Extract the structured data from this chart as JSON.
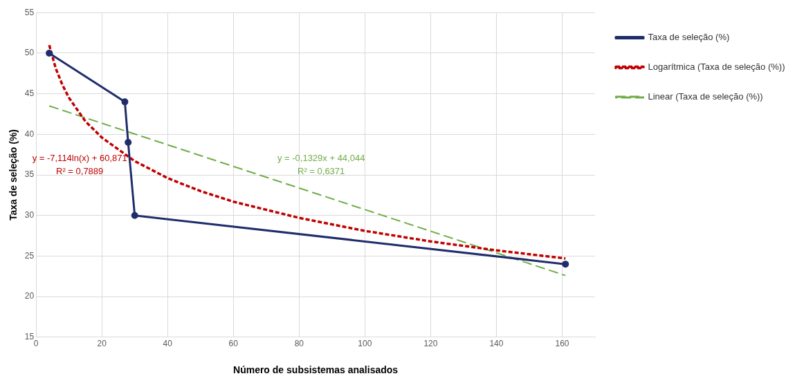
{
  "chart_data": {
    "type": "line",
    "xlabel": "Número de subsistemas analisados",
    "ylabel": "Taxa de seleção (%)",
    "xlim": [
      0,
      170
    ],
    "xticks": [
      0,
      20,
      40,
      60,
      80,
      100,
      120,
      140,
      160
    ],
    "ylim": [
      15,
      55
    ],
    "yticks": [
      15,
      20,
      25,
      30,
      35,
      40,
      45,
      50,
      55
    ],
    "grid": true,
    "legend": "right",
    "series": [
      {
        "name": "Taxa de seleção (%)",
        "color": "#1f2d6b",
        "type": "line",
        "marker": "circle",
        "line_style": "solid",
        "x": [
          4,
          27,
          28,
          30,
          161
        ],
        "values": [
          50,
          44,
          39,
          30,
          24
        ]
      },
      {
        "name": "Logarítmica (Taxa de seleção (%))",
        "color": "#c00000",
        "type": "line",
        "marker": "none",
        "line_style": "dotted",
        "x": [
          4,
          6,
          8,
          10,
          15,
          20,
          30,
          40,
          50,
          60,
          80,
          100,
          120,
          140,
          161
        ],
        "values": [
          51.0,
          48.1,
          46.1,
          44.5,
          41.6,
          39.6,
          36.7,
          34.6,
          33.0,
          31.7,
          29.7,
          28.1,
          26.8,
          25.7,
          24.7
        ]
      },
      {
        "name": "Linear (Taxa de seleção (%))",
        "color": "#70ad47",
        "type": "line",
        "marker": "none",
        "line_style": "dashed",
        "x": [
          4,
          161
        ],
        "values": [
          43.5,
          22.6
        ]
      }
    ],
    "annotations": [
      "y = -7,114ln(x) + 60,871",
      "R² = 0,7889",
      "y = -0,1329x + 44,044",
      "R² = 0,6371"
    ]
  }
}
